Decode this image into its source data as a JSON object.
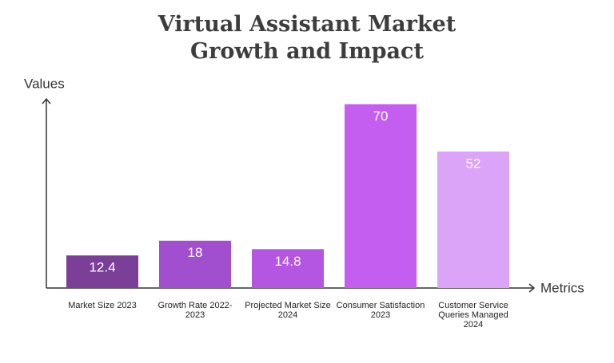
{
  "chart_data": {
    "type": "bar",
    "title": "Virtual Assistant Market Growth and Impact",
    "x_label": "Metrics",
    "y_label": "Values",
    "categories": [
      "Market Size 2023",
      "Growth Rate 2022-2023",
      "Projected Market Size 2024",
      "Consumer Satisfaction 2023",
      "Customer Service Queries Managed 2024"
    ],
    "values": [
      12.4,
      18,
      14.8,
      70,
      52
    ],
    "colors": [
      "#7b3f98",
      "#a24fcf",
      "#b456e2",
      "#c35ef0",
      "#dba4f8"
    ],
    "ylim": [
      0,
      72
    ]
  }
}
